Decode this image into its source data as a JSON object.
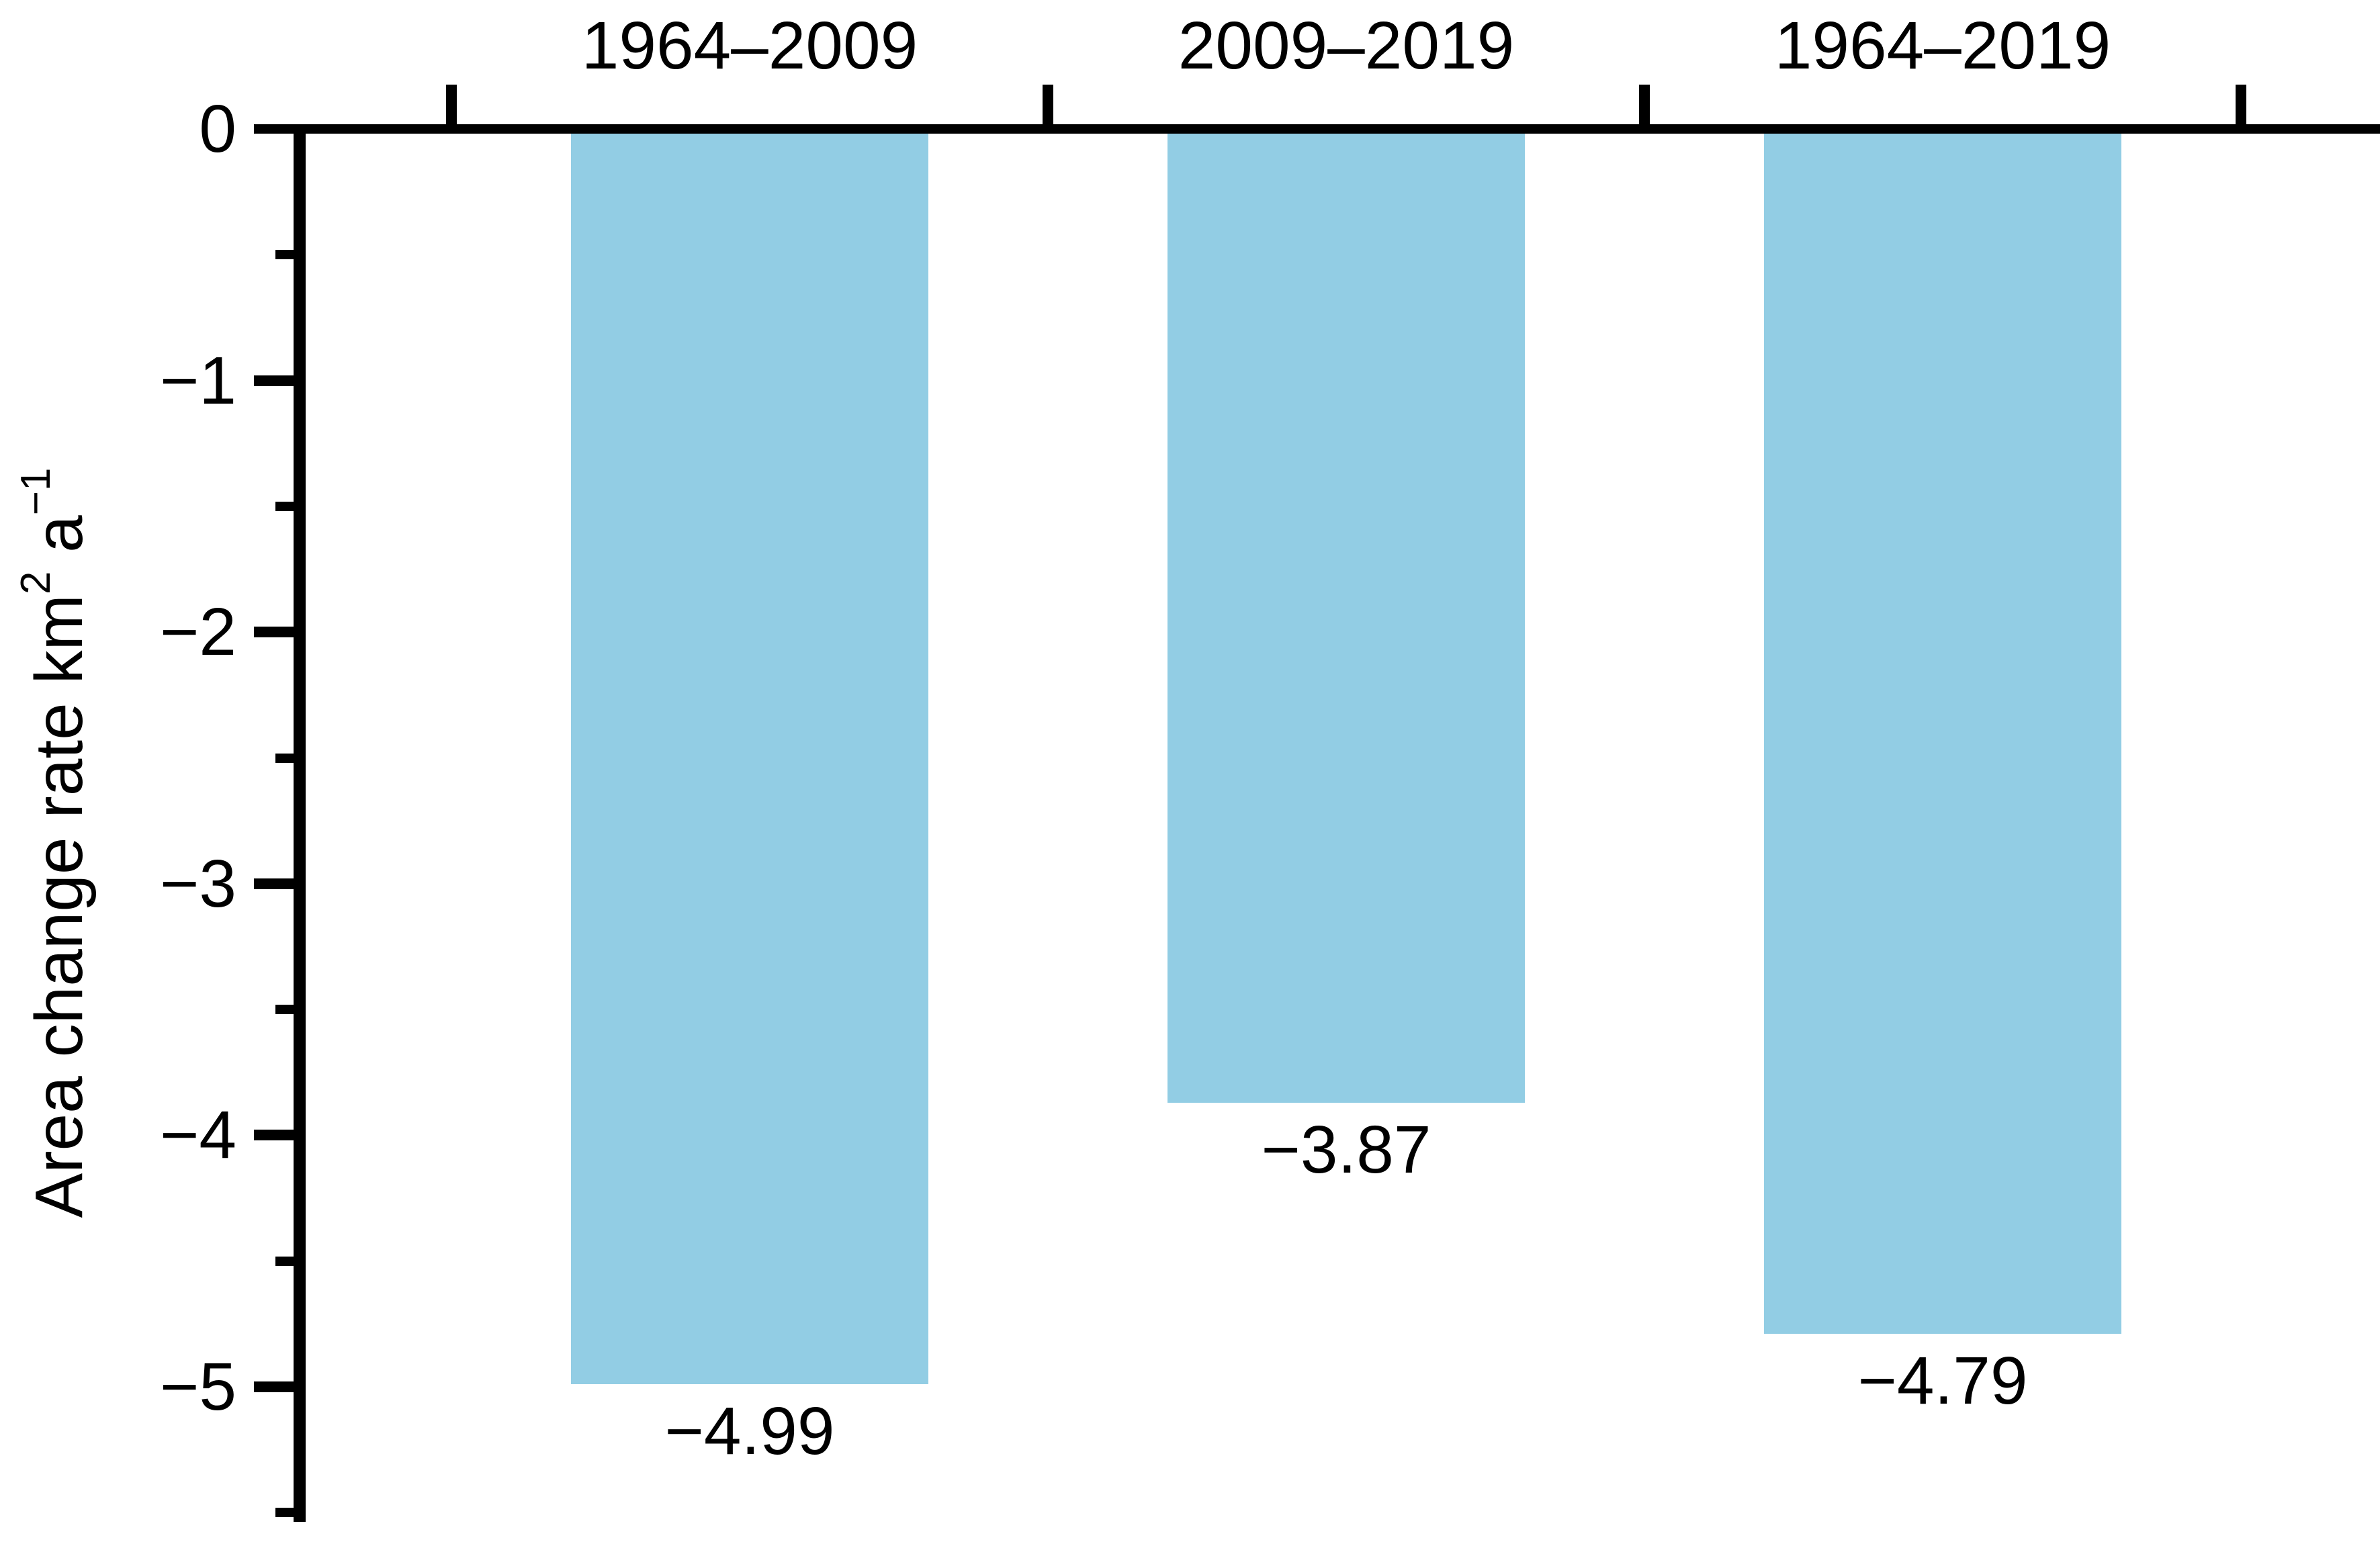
{
  "chart_data": {
    "type": "bar",
    "title": "",
    "categories": [
      "1964–2009",
      "2009–2019",
      "1964–2019"
    ],
    "values": [
      -4.99,
      -3.87,
      -4.79
    ],
    "bar_value_labels": [
      "−4.99",
      "−3.87",
      "−4.79"
    ],
    "ylabel": "Area change rate km² a⁻¹",
    "ylabel_parts": [
      {
        "text": "Area change rate km"
      },
      {
        "text": "2",
        "sup": true
      },
      {
        "text": " a"
      },
      {
        "text": "−1",
        "sup": true
      }
    ],
    "xlabel": "",
    "ylim": [
      -5.5,
      0
    ],
    "yticks_major": [
      0,
      -1,
      -2,
      -3,
      -4,
      -5
    ],
    "ytick_labels": [
      "0",
      "−1",
      "−2",
      "−3",
      "−4",
      "−5"
    ],
    "yticks_minor": [
      -0.5,
      -1.5,
      -2.5,
      -3.5,
      -4.5,
      -5.5
    ],
    "category_label_position": "top",
    "grid": false,
    "legend": false,
    "bar_color": "#92cde4",
    "axis_color": "#000000",
    "text_color": "#000000",
    "background_color": "#ffffff"
  }
}
